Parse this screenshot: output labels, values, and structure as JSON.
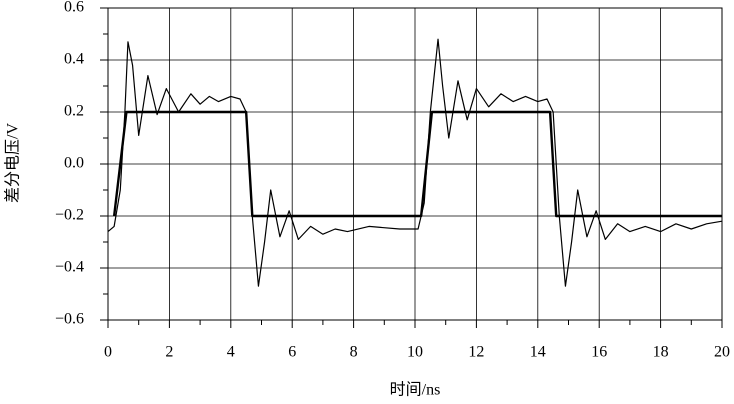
{
  "chart_data": {
    "type": "line",
    "xlabel": "时间/ns",
    "ylabel": "差分电压/V",
    "xlim": [
      0,
      20
    ],
    "xticks": [
      0,
      2,
      4,
      6,
      8,
      10,
      12,
      14,
      16,
      18,
      20
    ],
    "xminorticks": [
      1,
      3,
      5,
      7,
      9,
      11,
      13,
      15,
      17,
      19
    ],
    "ylim": [
      -0.6,
      0.6
    ],
    "yticks": [
      {
        "value": -0.6,
        "label": "−0.6"
      },
      {
        "value": -0.4,
        "label": "−0.4"
      },
      {
        "value": -0.2,
        "label": "−0.2"
      },
      {
        "value": 0,
        "label": "0.0"
      },
      0.2,
      0.4,
      0.6
    ],
    "yminorticks": [
      -0.5,
      -0.3,
      -0.1,
      0.1,
      0.3,
      0.5
    ],
    "grid": true,
    "series": [
      {
        "color": "#000000",
        "x": [
          0.2,
          0.6,
          4.5,
          4.7,
          10.2,
          10.55,
          14.4,
          14.6,
          20
        ],
        "values": [
          -0.2,
          0.2,
          0.2,
          -0.2,
          -0.2,
          0.2,
          0.2,
          -0.2,
          -0.2
        ]
      },
      {
        "color": "#000000",
        "x": [
          0,
          0.2,
          0.4,
          0.55,
          0.65,
          0.8,
          1.0,
          1.3,
          1.6,
          1.9,
          2.3,
          2.7,
          3.0,
          3.3,
          3.6,
          4.0,
          4.3,
          4.5,
          4.7,
          4.9,
          5.1,
          5.3,
          5.6,
          5.9,
          6.2,
          6.6,
          7.0,
          7.4,
          7.8,
          8.5,
          9.5,
          10.1,
          10.3,
          10.5,
          10.75,
          10.9,
          11.1,
          11.4,
          11.7,
          12.0,
          12.4,
          12.8,
          13.2,
          13.6,
          14.0,
          14.3,
          14.5,
          14.7,
          14.9,
          15.1,
          15.3,
          15.6,
          15.9,
          16.2,
          16.6,
          17.0,
          17.5,
          18.0,
          18.5,
          19.0,
          19.5,
          20
        ],
        "values": [
          -0.26,
          -0.24,
          -0.1,
          0.2,
          0.47,
          0.38,
          0.11,
          0.34,
          0.19,
          0.29,
          0.2,
          0.27,
          0.23,
          0.26,
          0.24,
          0.26,
          0.25,
          0.2,
          -0.2,
          -0.47,
          -0.3,
          -0.1,
          -0.28,
          -0.18,
          -0.29,
          -0.24,
          -0.27,
          -0.25,
          -0.26,
          -0.24,
          -0.25,
          -0.25,
          -0.15,
          0.2,
          0.48,
          0.3,
          0.1,
          0.32,
          0.17,
          0.29,
          0.22,
          0.27,
          0.24,
          0.26,
          0.24,
          0.25,
          0.2,
          -0.2,
          -0.47,
          -0.3,
          -0.1,
          -0.28,
          -0.18,
          -0.29,
          -0.23,
          -0.26,
          -0.24,
          -0.26,
          -0.23,
          -0.25,
          -0.23,
          -0.22
        ]
      }
    ]
  }
}
